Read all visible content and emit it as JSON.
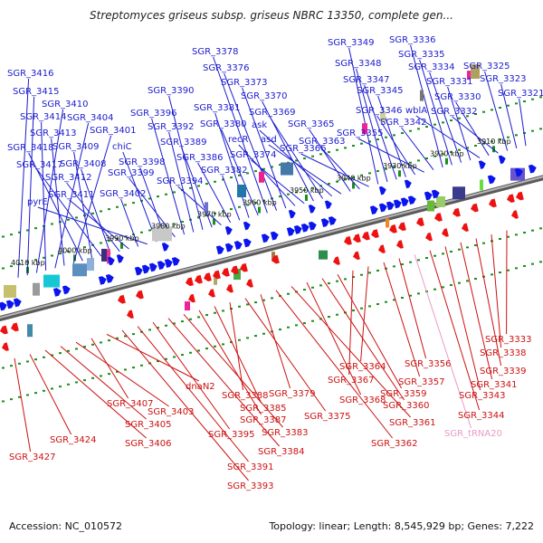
{
  "header": {
    "title": "Streptomyces griseus subsp. griseus NBRC 13350, complete gen..."
  },
  "footer": {
    "accession": "Accession: NC_010572",
    "summary": "Topology: linear; Length: 8,545,929 bp; Genes: 7,222"
  },
  "colors": {
    "forward_label": "#1b1bcf",
    "reverse_label": "#cc1111",
    "rna_label": "#e89ac8",
    "forward_arrow": "#0a14ee",
    "reverse_arrow": "#ee1111",
    "axis": "#888888",
    "tick": "#1a8f1a"
  },
  "scale": {
    "ticks": [
      "4010 kbp",
      "4000 kbp",
      "3990 kbp",
      "3980 kbp",
      "3970 kbp",
      "3960 kbp",
      "3950 kbp",
      "3940 kbp",
      "3930 kbp",
      "3920 kbp",
      "3910 kbp"
    ]
  },
  "genes_top": [
    "SGR_3416",
    "SGR_3415",
    "SGR_3410",
    "SGR_3414",
    "SGR_3404",
    "SGR_3413",
    "SGR_3401",
    "SGR_3418",
    "SGR_3409",
    "SGR_3417",
    "SGR_3408",
    "SGR_3412",
    "SGR_3411",
    "SGR_3402",
    "pyrE",
    "chiC",
    "SGR_3398",
    "SGR_3399",
    "SGR_3396",
    "SGR_3392",
    "SGR_3390",
    "SGR_3389",
    "SGR_3394",
    "SGR_3386",
    "SGR_3382",
    "SGR_3381",
    "SGR_3380",
    "SGR_3378",
    "SGR_3376",
    "SGR_3373",
    "recR",
    "SGR_3374",
    "SGR_3370",
    "SGR_3369",
    "ask",
    "asd",
    "SGR_3365",
    "SGR_3363",
    "SGR_3366",
    "SGR_3349",
    "SGR_3348",
    "SGR_3347",
    "SGR_3345",
    "SGR_3346",
    "SGR_3355",
    "SGR_3342",
    "SGR_3336",
    "SGR_3335",
    "SGR_3334",
    "SGR_3331",
    "wblA",
    "SGR_3330",
    "SGR_3332",
    "SGR_3325",
    "SGR_3323",
    "SGR_3321"
  ],
  "genes_bottom": [
    "SGR_3333",
    "SGR_3338",
    "SGR_3339",
    "SGR_3341",
    "SGR_3343",
    "SGR_3344",
    "SGR_tRNA20",
    "SGR_3356",
    "SGR_3357",
    "SGR_3364",
    "SGR_3367",
    "SGR_3359",
    "SGR_3360",
    "SGR_3368",
    "SGR_3361",
    "SGR_3362",
    "SGR_3379",
    "SGR_3375",
    "SGR_3388",
    "SGR_3385",
    "SGR_3387",
    "SGR_3383",
    "SGR_3384",
    "SGR_3395",
    "SGR_3391",
    "SGR_3393",
    "dnaN2",
    "SGR_3407",
    "SGR_3403",
    "SGR_3405",
    "SGR_3406",
    "SGR_3424",
    "SGR_3427"
  ]
}
